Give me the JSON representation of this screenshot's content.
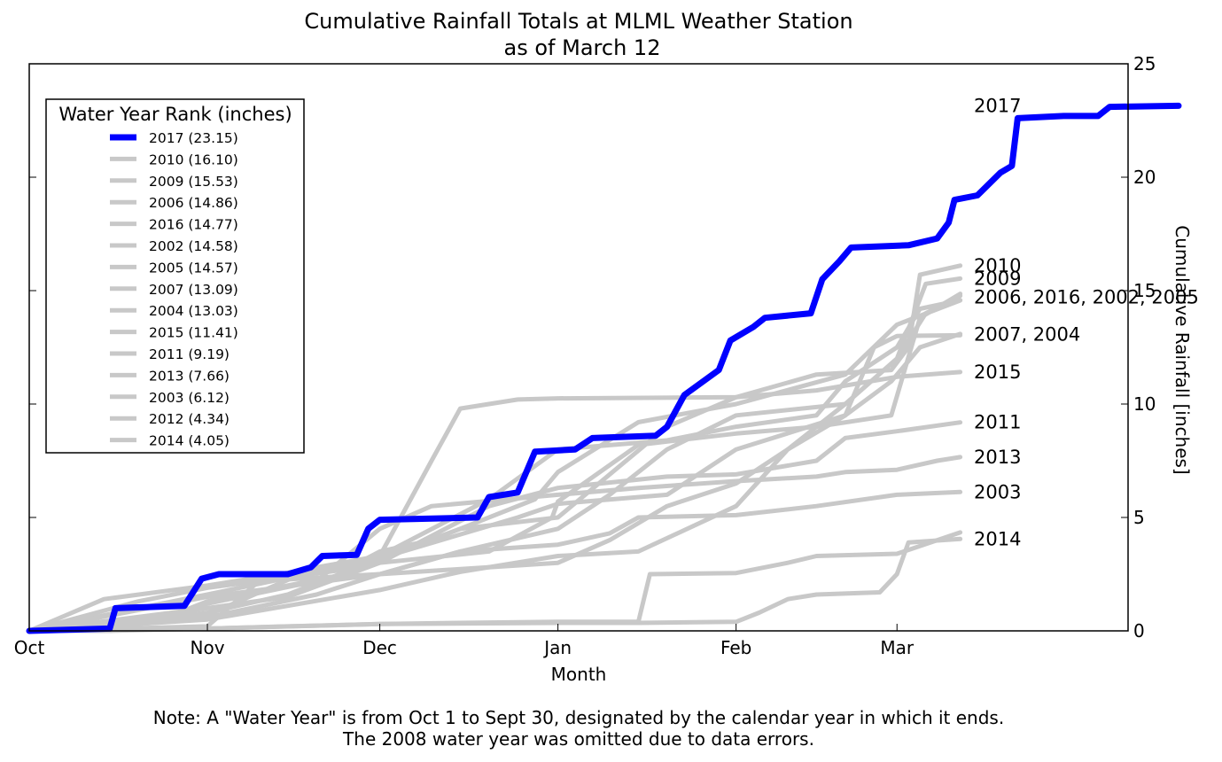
{
  "chart_data": {
    "type": "line",
    "title": "Cumulative Rainfall Totals at MLML Weather Station",
    "subtitle": "as of March 12",
    "xlabel": "Month",
    "ylabel": "Cumulative Rainfall [inches]",
    "x_ticks": [
      "Oct",
      "Nov",
      "Dec",
      "Jan",
      "Feb",
      "Mar"
    ],
    "y_ticks": [
      "0",
      "5",
      "10",
      "15",
      "20",
      "25"
    ],
    "ylim": [
      0,
      25
    ],
    "y_axis_side": "right",
    "grid": false,
    "legend": {
      "title": "Water Year Rank (inches)",
      "placement": "upper-left",
      "entries": [
        "2017 (23.15)",
        "2010 (16.10)",
        "2009 (15.53)",
        "2006 (14.86)",
        "2016 (14.77)",
        "2002 (14.58)",
        "2005 (14.57)",
        "2007 (13.09)",
        "2004 (13.03)",
        "2015 (11.41)",
        "2011 (9.19)",
        "2013 (7.66)",
        "2003 (6.12)",
        "2012 (4.34)",
        "2014 (4.05)"
      ]
    },
    "highlight_color": "#0000ff",
    "other_color": "#c8c8c8",
    "end_labels": [
      {
        "text": "2017",
        "y": 23.15
      },
      {
        "text": "2010",
        "y": 16.1
      },
      {
        "text": "2009",
        "y": 15.53
      },
      {
        "text": "2006, 2016, 2002, 2005",
        "y": 14.7
      },
      {
        "text": "2007, 2004",
        "y": 13.06
      },
      {
        "text": "2015",
        "y": 11.41
      },
      {
        "text": "2011",
        "y": 9.19
      },
      {
        "text": "2013",
        "y": 7.66
      },
      {
        "text": "2003",
        "y": 6.12
      },
      {
        "text": "2014",
        "y": 4.05
      }
    ],
    "series": [
      {
        "name": "2012",
        "highlight": false,
        "points": [
          [
            "Oct 1",
            0
          ],
          [
            "Oct 15",
            0
          ],
          [
            "Nov 1",
            0.1
          ],
          [
            "Nov 15",
            0.2
          ],
          [
            "Dec 1",
            0.3
          ],
          [
            "Dec 15",
            0.35
          ],
          [
            "Jan 1",
            0.4
          ],
          [
            "Jan 15",
            0.4
          ],
          [
            "Jan 17",
            2.5
          ],
          [
            "Feb 1",
            2.55
          ],
          [
            "Feb 10",
            3
          ],
          [
            "Feb 15",
            3.3
          ],
          [
            "Mar 1",
            3.4
          ],
          [
            "Mar 12",
            4.34
          ]
        ]
      },
      {
        "name": "2014",
        "highlight": false,
        "points": [
          [
            "Oct 1",
            0
          ],
          [
            "Nov 1",
            0.1
          ],
          [
            "Dec 1",
            0.3
          ],
          [
            "Jan 1",
            0.35
          ],
          [
            "Jan 15",
            0.35
          ],
          [
            "Feb 1",
            0.4
          ],
          [
            "Feb 5",
            0.8
          ],
          [
            "Feb 10",
            1.4
          ],
          [
            "Feb 15",
            1.6
          ],
          [
            "Feb 26",
            1.7
          ],
          [
            "Mar 1",
            2.5
          ],
          [
            "Mar 3",
            3.9
          ],
          [
            "Mar 12",
            4.05
          ]
        ]
      },
      {
        "name": "2003",
        "highlight": false,
        "points": [
          [
            "Oct 1",
            0
          ],
          [
            "Nov 1",
            0.2
          ],
          [
            "Nov 10",
            2.2
          ],
          [
            "Dec 1",
            2.5
          ],
          [
            "Dec 15",
            3.5
          ],
          [
            "Jan 1",
            3.8
          ],
          [
            "Jan 10",
            4.3
          ],
          [
            "Jan 15",
            5
          ],
          [
            "Feb 1",
            5.1
          ],
          [
            "Feb 15",
            5.5
          ],
          [
            "Mar 1",
            6
          ],
          [
            "Mar 12",
            6.12
          ]
        ]
      },
      {
        "name": "2013",
        "highlight": false,
        "points": [
          [
            "Oct 1",
            0
          ],
          [
            "Oct 25",
            0.4
          ],
          [
            "Nov 1",
            1.2
          ],
          [
            "Nov 20",
            2.2
          ],
          [
            "Dec 1",
            4.5
          ],
          [
            "Dec 10",
            5.5
          ],
          [
            "Jan 1",
            6
          ],
          [
            "Jan 15",
            6.3
          ],
          [
            "Feb 1",
            6.6
          ],
          [
            "Feb 15",
            6.8
          ],
          [
            "Feb 20",
            7
          ],
          [
            "Mar 1",
            7.1
          ],
          [
            "Mar 8",
            7.5
          ],
          [
            "Mar 12",
            7.66
          ]
        ]
      },
      {
        "name": "2011",
        "highlight": false,
        "points": [
          [
            "Oct 1",
            0
          ],
          [
            "Oct 20",
            1
          ],
          [
            "Nov 1",
            1.6
          ],
          [
            "Nov 20",
            2.6
          ],
          [
            "Dec 1",
            3
          ],
          [
            "Dec 20",
            5.5
          ],
          [
            "Jan 1",
            6.3
          ],
          [
            "Jan 20",
            6.8
          ],
          [
            "Feb 1",
            6.9
          ],
          [
            "Feb 15",
            7.5
          ],
          [
            "Feb 20",
            8.5
          ],
          [
            "Mar 1",
            8.8
          ],
          [
            "Mar 12",
            9.19
          ]
        ]
      },
      {
        "name": "2015",
        "highlight": false,
        "points": [
          [
            "Oct 1",
            0
          ],
          [
            "Oct 25",
            0.6
          ],
          [
            "Nov 1",
            1.3
          ],
          [
            "Nov 25",
            2.5
          ],
          [
            "Dec 1",
            3.3
          ],
          [
            "Dec 10",
            7.5
          ],
          [
            "Dec 15",
            9.8
          ],
          [
            "Dec 25",
            10.2
          ],
          [
            "Jan 1",
            10.25
          ],
          [
            "Feb 1",
            10.3
          ],
          [
            "Feb 15",
            10.6
          ],
          [
            "Mar 1",
            11.2
          ],
          [
            "Mar 12",
            11.41
          ]
        ]
      },
      {
        "name": "2007",
        "highlight": false,
        "points": [
          [
            "Oct 1",
            0
          ],
          [
            "Nov 1",
            0.5
          ],
          [
            "Dec 1",
            1.8
          ],
          [
            "Dec 15",
            2.6
          ],
          [
            "Jan 1",
            3.3
          ],
          [
            "Jan 15",
            3.5
          ],
          [
            "Feb 1",
            5.5
          ],
          [
            "Feb 10",
            8
          ],
          [
            "Feb 20",
            9.5
          ],
          [
            "Feb 28",
            11
          ],
          [
            "Mar 5",
            12.5
          ],
          [
            "Mar 12",
            13.09
          ]
        ]
      },
      {
        "name": "2004",
        "highlight": false,
        "points": [
          [
            "Oct 1",
            0
          ],
          [
            "Nov 1",
            0.8
          ],
          [
            "Nov 15",
            1.6
          ],
          [
            "Dec 1",
            3.2
          ],
          [
            "Dec 25",
            5
          ],
          [
            "Jan 1",
            5.6
          ],
          [
            "Jan 20",
            6
          ],
          [
            "Feb 1",
            8
          ],
          [
            "Feb 20",
            9.5
          ],
          [
            "Feb 25",
            12.5
          ],
          [
            "Mar 1",
            13
          ],
          [
            "Mar 12",
            13.03
          ]
        ]
      },
      {
        "name": "2005",
        "highlight": false,
        "points": [
          [
            "Oct 1",
            0
          ],
          [
            "Oct 20",
            1.3
          ],
          [
            "Nov 1",
            1.9
          ],
          [
            "Nov 25",
            2.7
          ],
          [
            "Dec 1",
            3.5
          ],
          [
            "Dec 10",
            4
          ],
          [
            "Dec 28",
            5.8
          ],
          [
            "Jan 1",
            7
          ],
          [
            "Jan 15",
            9.2
          ],
          [
            "Feb 1",
            10
          ],
          [
            "Feb 20",
            11.3
          ],
          [
            "Mar 1",
            13.5
          ],
          [
            "Mar 12",
            14.57
          ]
        ]
      },
      {
        "name": "2002",
        "highlight": false,
        "points": [
          [
            "Oct 1",
            0
          ],
          [
            "Nov 1",
            0.7
          ],
          [
            "Nov 20",
            2.8
          ],
          [
            "Dec 1",
            3.3
          ],
          [
            "Dec 20",
            5.8
          ],
          [
            "Jan 1",
            8
          ],
          [
            "Jan 20",
            8.4
          ],
          [
            "Feb 1",
            9
          ],
          [
            "Feb 15",
            9.5
          ],
          [
            "Feb 20",
            11
          ],
          [
            "Mar 1",
            12.5
          ],
          [
            "Mar 5",
            14.2
          ],
          [
            "Mar 12",
            14.58
          ]
        ]
      },
      {
        "name": "2016",
        "highlight": false,
        "points": [
          [
            "Oct 1",
            0
          ],
          [
            "Nov 1",
            0.6
          ],
          [
            "Nov 20",
            1.6
          ],
          [
            "Dec 1",
            2.5
          ],
          [
            "Dec 15",
            3.5
          ],
          [
            "Jan 1",
            4.5
          ],
          [
            "Jan 10",
            6
          ],
          [
            "Jan 20",
            8
          ],
          [
            "Feb 1",
            9.5
          ],
          [
            "Feb 20",
            10
          ],
          [
            "Mar 1",
            12
          ],
          [
            "Mar 6",
            14
          ],
          [
            "Mar 12",
            14.77
          ]
        ]
      },
      {
        "name": "2006",
        "highlight": false,
        "points": [
          [
            "Oct 1",
            0
          ],
          [
            "Nov 1",
            1
          ],
          [
            "Nov 15",
            1.5
          ],
          [
            "Dec 1",
            3
          ],
          [
            "Dec 20",
            3.5
          ],
          [
            "Dec 31",
            5
          ],
          [
            "Jan 1",
            5.7
          ],
          [
            "Jan 15",
            8.2
          ],
          [
            "Feb 1",
            8.7
          ],
          [
            "Feb 15",
            9
          ],
          [
            "Feb 28",
            9.5
          ],
          [
            "Mar 5",
            13.8
          ],
          [
            "Mar 12",
            14.86
          ]
        ]
      },
      {
        "name": "2009",
        "highlight": false,
        "points": [
          [
            "Oct 1",
            0
          ],
          [
            "Nov 1",
            1.5
          ],
          [
            "Dec 1",
            2.5
          ],
          [
            "Jan 1",
            3
          ],
          [
            "Jan 10",
            4
          ],
          [
            "Jan 20",
            5.5
          ],
          [
            "Feb 1",
            6.5
          ],
          [
            "Feb 10",
            8
          ],
          [
            "Feb 20",
            10
          ],
          [
            "Mar 1",
            12
          ],
          [
            "Mar 6",
            15.3
          ],
          [
            "Mar 12",
            15.53
          ]
        ]
      },
      {
        "name": "2010",
        "highlight": false,
        "points": [
          [
            "Oct 1",
            0
          ],
          [
            "Oct 14",
            1.4
          ],
          [
            "Nov 1",
            2
          ],
          [
            "Dec 1",
            3.2
          ],
          [
            "Dec 15",
            4.5
          ],
          [
            "Jan 1",
            5
          ],
          [
            "Jan 20",
            9
          ],
          [
            "Feb 1",
            10.3
          ],
          [
            "Feb 15",
            11.3
          ],
          [
            "Feb 28",
            11.5
          ],
          [
            "Mar 3",
            12.5
          ],
          [
            "Mar 5",
            15.7
          ],
          [
            "Mar 12",
            16.1
          ]
        ]
      },
      {
        "name": "2017",
        "highlight": true,
        "points": [
          [
            "Oct 1",
            0
          ],
          [
            "Oct 15",
            0.1
          ],
          [
            "Oct 16",
            1
          ],
          [
            "Oct 28",
            1.1
          ],
          [
            "Oct 31",
            2.3
          ],
          [
            "Nov 3",
            2.5
          ],
          [
            "Nov 15",
            2.5
          ],
          [
            "Nov 19",
            2.8
          ],
          [
            "Nov 21",
            3.3
          ],
          [
            "Nov 27",
            3.35
          ],
          [
            "Nov 29",
            4.5
          ],
          [
            "Dec 1",
            4.9
          ],
          [
            "Dec 18",
            5
          ],
          [
            "Dec 20",
            5.9
          ],
          [
            "Dec 25",
            6.1
          ],
          [
            "Dec 28",
            7.9
          ],
          [
            "Jan 4",
            8
          ],
          [
            "Jan 7",
            8.5
          ],
          [
            "Jan 18",
            8.6
          ],
          [
            "Jan 20",
            9
          ],
          [
            "Jan 23",
            10.4
          ],
          [
            "Jan 29",
            11.5
          ],
          [
            "Jan 31",
            12.8
          ],
          [
            "Feb 4",
            13.4
          ],
          [
            "Feb 6",
            13.8
          ],
          [
            "Feb 14",
            14
          ],
          [
            "Feb 16",
            15.5
          ],
          [
            "Feb 19",
            16.3
          ],
          [
            "Feb 21",
            16.9
          ],
          [
            "Mar 3",
            17
          ],
          [
            "Mar 8",
            17.3
          ],
          [
            "Mar 10",
            18
          ],
          [
            "Mar 11",
            19
          ],
          [
            "Mar 15",
            19.2
          ],
          [
            "Mar 19",
            20.2
          ],
          [
            "Mar 21",
            20.5
          ],
          [
            "Mar 22",
            22.6
          ],
          [
            "Mar 30",
            22.7
          ],
          [
            "Apr 5",
            22.7
          ],
          [
            "Apr 7",
            23.1
          ],
          [
            "Apr 19",
            23.15
          ]
        ]
      }
    ]
  },
  "note": {
    "line1": "Note: A \"Water Year\" is from Oct 1 to Sept 30, designated by the calendar year in which it ends.",
    "line2": "The 2008 water year was omitted due to data errors."
  }
}
